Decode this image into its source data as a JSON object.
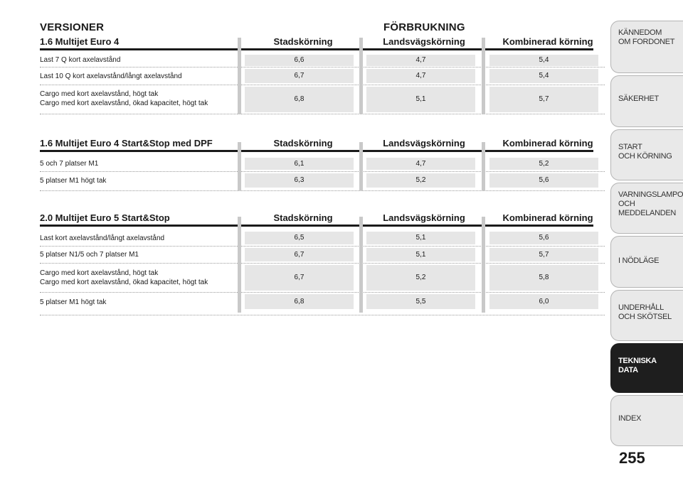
{
  "headers": {
    "versions": "VERSIONER",
    "consumption": "FÖRBRUKNING"
  },
  "sections": [
    {
      "title": "1.6 Multijet Euro 4",
      "columns": [
        "Stadskörning",
        "Landsvägskörning",
        "Kombinerad körning"
      ],
      "rows": [
        {
          "lines": [
            "Last 7 Q kort axelavstånd"
          ],
          "values": [
            "6,6",
            "4,7",
            "5,4"
          ]
        },
        {
          "lines": [
            "Last 10 Q kort axelavstånd/långt axelavstånd"
          ],
          "values": [
            "6,7",
            "4,7",
            "5,4"
          ]
        },
        {
          "lines": [
            "Cargo med kort axelavstånd, högt tak",
            "Cargo med kort axelavstånd, ökad kapacitet, högt tak"
          ],
          "values": [
            "6,8",
            "5,1",
            "5,7"
          ]
        }
      ]
    },
    {
      "title": "1.6 Multijet Euro 4 Start&Stop med DPF",
      "columns": [
        "Stadskörning",
        "Landsvägskörning",
        "Kombinerad körning"
      ],
      "rows": [
        {
          "lines": [
            "5 och 7 platser M1"
          ],
          "values": [
            "6,1",
            "4,7",
            "5,2"
          ]
        },
        {
          "lines": [
            "5 platser M1 högt tak"
          ],
          "values": [
            "6,3",
            "5,2",
            "5,6"
          ]
        }
      ]
    },
    {
      "title": "2.0 Multijet Euro 5 Start&Stop",
      "columns": [
        "Stadskörning",
        "Landsvägskörning",
        "Kombinerad körning"
      ],
      "rows": [
        {
          "lines": [
            "Last kort axelavstånd/långt axelavstånd"
          ],
          "values": [
            "6,5",
            "5,1",
            "5,6"
          ]
        },
        {
          "lines": [
            "5 platser N1/5 och 7 platser M1"
          ],
          "values": [
            "6,7",
            "5,1",
            "5,7"
          ]
        },
        {
          "lines": [
            "Cargo med kort axelavstånd, högt tak",
            "Cargo med kort axelavstånd, ökad kapacitet, högt tak"
          ],
          "values": [
            "6,7",
            "5,2",
            "5,8"
          ]
        },
        {
          "lines": [
            "5 platser M1 högt tak"
          ],
          "values": [
            "6,8",
            "5,5",
            "6,0"
          ]
        }
      ]
    }
  ],
  "sidebar": [
    {
      "label": "KÄNNEDOM\nOM FORDONET",
      "active": false
    },
    {
      "label": "SÄKERHET",
      "active": false
    },
    {
      "label": "START\nOCH KÖRNING",
      "active": false
    },
    {
      "label": "VARNINGSLAMPOR\nOCH\nMEDDELANDEN",
      "active": false
    },
    {
      "label": "I NÖDLÄGE",
      "active": false
    },
    {
      "label": "UNDERHÅLL\nOCH SKÖTSEL",
      "active": false
    },
    {
      "label": "TEKNISKA\nDATA",
      "active": true
    },
    {
      "label": "INDEX",
      "active": false
    }
  ],
  "page_number": "255"
}
